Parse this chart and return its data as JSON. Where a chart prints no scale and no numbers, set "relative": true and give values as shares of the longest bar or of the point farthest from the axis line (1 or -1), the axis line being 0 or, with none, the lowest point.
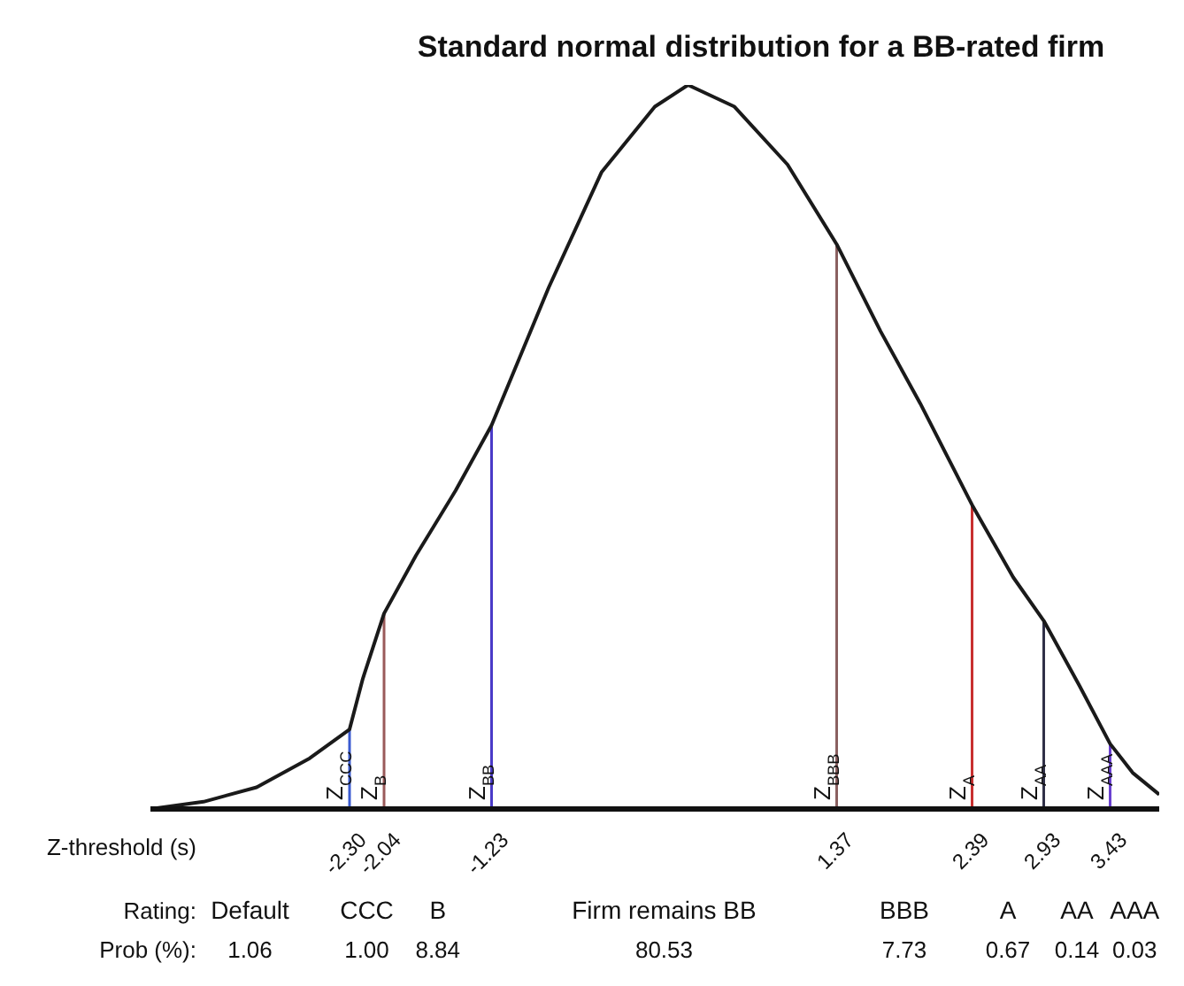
{
  "chart_data": {
    "type": "line",
    "title": "Standard normal distribution for a BB-rated firm",
    "relative": true,
    "xlim": [
      -3.8,
      3.8
    ],
    "x": [
      -3.8,
      -3.4,
      -3.0,
      -2.6,
      -2.3,
      -2.2,
      -2.04,
      -1.8,
      -1.5,
      -1.23,
      -0.8,
      -0.4,
      0,
      0.25,
      0.6,
      1.0,
      1.37,
      1.7,
      2.0,
      2.39,
      2.7,
      2.93,
      3.2,
      3.43,
      3.6,
      3.8
    ],
    "series": [
      {
        "color": "#1a1a1a",
        "values": [
          0.0,
          0.01,
          0.03,
          0.07,
          0.11,
          0.18,
          0.27,
          0.35,
          0.44,
          0.53,
          0.72,
          0.88,
          0.97,
          1.0,
          0.97,
          0.89,
          0.78,
          0.66,
          0.56,
          0.42,
          0.32,
          0.26,
          0.17,
          0.09,
          0.05,
          0.02
        ]
      }
    ],
    "xticks": [
      {
        "value": -2.3,
        "label": "-2.30"
      },
      -2.04,
      -1.23,
      1.37,
      2.39,
      2.93,
      3.43
    ],
    "ref_lines": [
      {
        "axis": "x",
        "value": -2.3,
        "label": "Z$_{CCC}$",
        "color": "#3a5bd0"
      },
      {
        "axis": "x",
        "value": -2.04,
        "label": "Z$_{B}$",
        "color": "#9a5a5a"
      },
      {
        "axis": "x",
        "value": -1.23,
        "label": "Z$_{BB}$",
        "color": "#4a3ac8"
      },
      {
        "axis": "x",
        "value": 1.37,
        "label": "Z$_{BBB}$",
        "color": "#8a6060"
      },
      {
        "axis": "x",
        "value": 2.39,
        "label": "Z$_{A}$",
        "color": "#c83030"
      },
      {
        "axis": "x",
        "value": 2.93,
        "label": "Z$_{AA}$",
        "color": "#303048"
      },
      {
        "axis": "x",
        "value": 3.43,
        "label": "Z$_{AAA}$",
        "color": "#6a40d0"
      }
    ],
    "annotations": [
      "Z-threshold (s)\nRating:\nProb (%):",
      "Default\n1.06",
      "CCC\n1.00",
      "B\n8.84",
      "Firm remains BB\n80.53",
      "BBB\n7.73",
      "A\n0.67",
      "AA\n0.14",
      "AAA\n0.03"
    ]
  }
}
